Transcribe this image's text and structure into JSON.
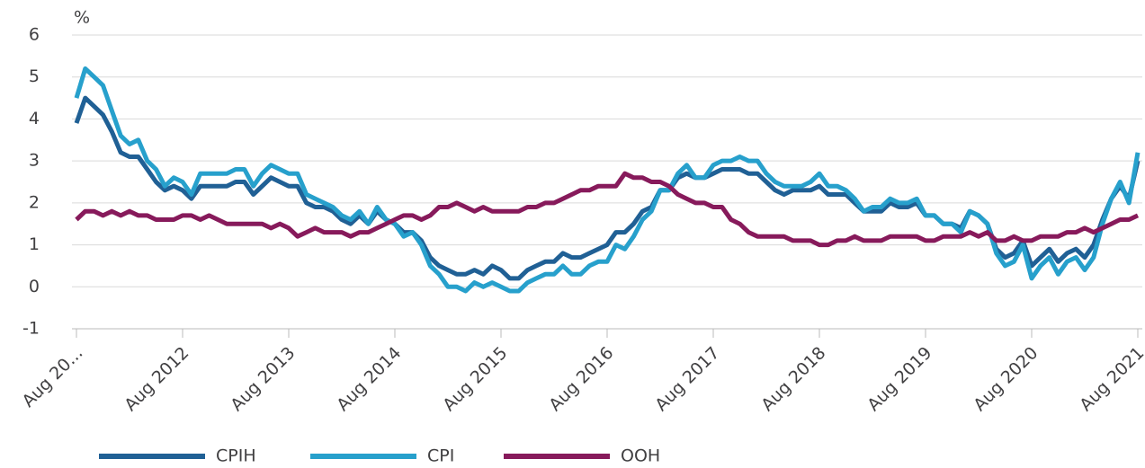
{
  "chart_data": {
    "type": "line",
    "ylabel": "%",
    "categories": [
      "Aug 20...",
      null,
      null,
      null,
      null,
      null,
      null,
      null,
      null,
      null,
      null,
      null,
      "Aug 2012",
      null,
      null,
      null,
      null,
      null,
      null,
      null,
      null,
      null,
      null,
      null,
      "Aug 2013",
      null,
      null,
      null,
      null,
      null,
      null,
      null,
      null,
      null,
      null,
      null,
      "Aug 2014",
      null,
      null,
      null,
      null,
      null,
      null,
      null,
      null,
      null,
      null,
      null,
      "Aug 2015",
      null,
      null,
      null,
      null,
      null,
      null,
      null,
      null,
      null,
      null,
      null,
      "Aug 2016",
      null,
      null,
      null,
      null,
      null,
      null,
      null,
      null,
      null,
      null,
      null,
      "Aug 2017",
      null,
      null,
      null,
      null,
      null,
      null,
      null,
      null,
      null,
      null,
      null,
      "Aug 2018",
      null,
      null,
      null,
      null,
      null,
      null,
      null,
      null,
      null,
      null,
      null,
      "Aug 2019",
      null,
      null,
      null,
      null,
      null,
      null,
      null,
      null,
      null,
      null,
      null,
      "Aug 2020",
      null,
      null,
      null,
      null,
      null,
      null,
      null,
      null,
      null,
      null,
      null,
      "Aug 2021"
    ],
    "series": [
      {
        "name": "CPIH",
        "color": "#206095",
        "values": [
          3.9,
          4.5,
          4.3,
          4.1,
          3.7,
          3.2,
          3.1,
          3.1,
          2.8,
          2.5,
          2.3,
          2.4,
          2.3,
          2.1,
          2.4,
          2.4,
          2.4,
          2.4,
          2.5,
          2.5,
          2.2,
          2.4,
          2.6,
          2.5,
          2.4,
          2.4,
          2.0,
          1.9,
          1.9,
          1.8,
          1.6,
          1.5,
          1.7,
          1.5,
          1.8,
          1.6,
          1.5,
          1.3,
          1.3,
          1.1,
          0.7,
          0.5,
          0.4,
          0.3,
          0.3,
          0.4,
          0.3,
          0.5,
          0.4,
          0.2,
          0.2,
          0.4,
          0.5,
          0.6,
          0.6,
          0.8,
          0.7,
          0.7,
          0.8,
          0.9,
          1.0,
          1.3,
          1.3,
          1.5,
          1.8,
          1.9,
          2.3,
          2.3,
          2.6,
          2.7,
          2.6,
          2.6,
          2.7,
          2.8,
          2.8,
          2.8,
          2.7,
          2.7,
          2.5,
          2.3,
          2.2,
          2.3,
          2.3,
          2.3,
          2.4,
          2.2,
          2.2,
          2.2,
          2.0,
          1.8,
          1.8,
          1.8,
          2.0,
          1.9,
          1.9,
          2.0,
          1.7,
          1.7,
          1.5,
          1.5,
          1.4,
          1.8,
          1.7,
          1.5,
          0.9,
          0.7,
          0.8,
          1.1,
          0.5,
          0.7,
          0.9,
          0.6,
          0.8,
          0.9,
          0.7,
          1.0,
          1.6,
          2.1,
          2.4,
          2.1,
          3.0
        ]
      },
      {
        "name": "CPI",
        "color": "#27a0cc",
        "values": [
          4.5,
          5.2,
          5.0,
          4.8,
          4.2,
          3.6,
          3.4,
          3.5,
          3.0,
          2.8,
          2.4,
          2.6,
          2.5,
          2.2,
          2.7,
          2.7,
          2.7,
          2.7,
          2.8,
          2.8,
          2.4,
          2.7,
          2.9,
          2.8,
          2.7,
          2.7,
          2.2,
          2.1,
          2.0,
          1.9,
          1.7,
          1.6,
          1.8,
          1.5,
          1.9,
          1.6,
          1.5,
          1.2,
          1.3,
          1.0,
          0.5,
          0.3,
          0.0,
          0.0,
          -0.1,
          0.1,
          0.0,
          0.1,
          0.0,
          -0.1,
          -0.1,
          0.1,
          0.2,
          0.3,
          0.3,
          0.5,
          0.3,
          0.3,
          0.5,
          0.6,
          0.6,
          1.0,
          0.9,
          1.2,
          1.6,
          1.8,
          2.3,
          2.3,
          2.7,
          2.9,
          2.6,
          2.6,
          2.9,
          3.0,
          3.0,
          3.1,
          3.0,
          3.0,
          2.7,
          2.5,
          2.4,
          2.4,
          2.4,
          2.5,
          2.7,
          2.4,
          2.4,
          2.3,
          2.1,
          1.8,
          1.9,
          1.9,
          2.1,
          2.0,
          2.0,
          2.1,
          1.7,
          1.7,
          1.5,
          1.5,
          1.3,
          1.8,
          1.7,
          1.5,
          0.8,
          0.5,
          0.6,
          1.0,
          0.2,
          0.5,
          0.7,
          0.3,
          0.6,
          0.7,
          0.4,
          0.7,
          1.5,
          2.1,
          2.5,
          2.0,
          3.2
        ]
      },
      {
        "name": "OOH",
        "color": "#871a5b",
        "values": [
          1.6,
          1.8,
          1.8,
          1.7,
          1.8,
          1.7,
          1.8,
          1.7,
          1.7,
          1.6,
          1.6,
          1.6,
          1.7,
          1.7,
          1.6,
          1.7,
          1.6,
          1.5,
          1.5,
          1.5,
          1.5,
          1.5,
          1.4,
          1.5,
          1.4,
          1.2,
          1.3,
          1.4,
          1.3,
          1.3,
          1.3,
          1.2,
          1.3,
          1.3,
          1.4,
          1.5,
          1.6,
          1.7,
          1.7,
          1.6,
          1.7,
          1.9,
          1.9,
          2.0,
          1.9,
          1.8,
          1.9,
          1.8,
          1.8,
          1.8,
          1.8,
          1.9,
          1.9,
          2.0,
          2.0,
          2.1,
          2.2,
          2.3,
          2.3,
          2.4,
          2.4,
          2.4,
          2.7,
          2.6,
          2.6,
          2.5,
          2.5,
          2.4,
          2.2,
          2.1,
          2.0,
          2.0,
          1.9,
          1.9,
          1.6,
          1.5,
          1.3,
          1.2,
          1.2,
          1.2,
          1.2,
          1.1,
          1.1,
          1.1,
          1.0,
          1.0,
          1.1,
          1.1,
          1.2,
          1.1,
          1.1,
          1.1,
          1.2,
          1.2,
          1.2,
          1.2,
          1.1,
          1.1,
          1.2,
          1.2,
          1.2,
          1.3,
          1.2,
          1.3,
          1.1,
          1.1,
          1.2,
          1.1,
          1.1,
          1.2,
          1.2,
          1.2,
          1.3,
          1.3,
          1.4,
          1.3,
          1.4,
          1.5,
          1.6,
          1.6,
          1.7
        ]
      }
    ],
    "ylim": [
      -1,
      6
    ],
    "yticks": [
      -1,
      0,
      1,
      2,
      3,
      4,
      5,
      6
    ],
    "grid": true,
    "legend": "bottom"
  }
}
